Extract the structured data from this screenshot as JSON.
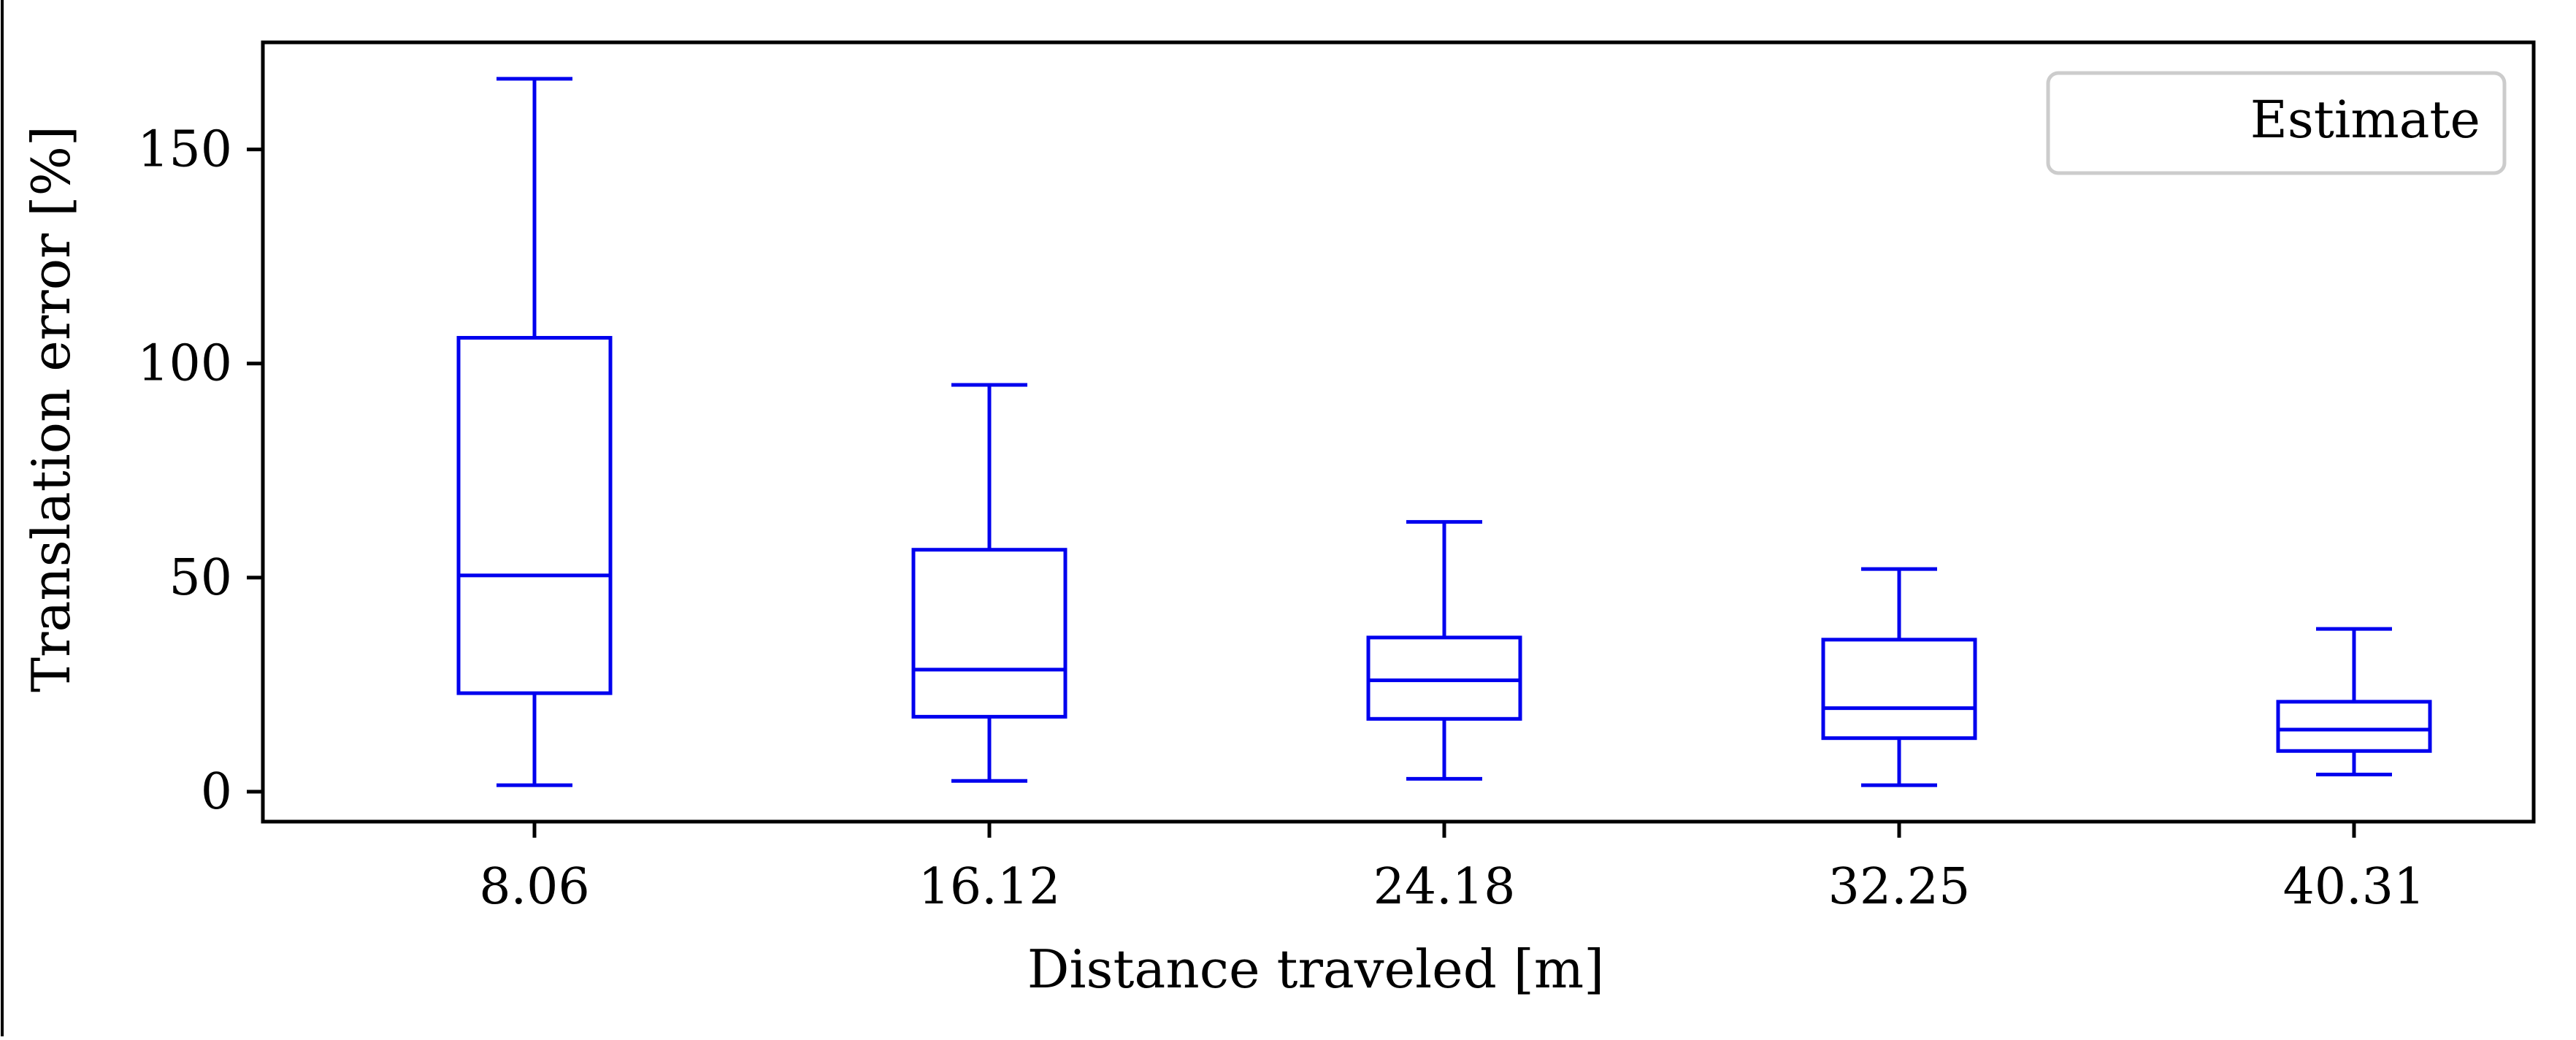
{
  "chart_data": {
    "type": "box",
    "xlabel": "Distance traveled [m]",
    "ylabel": "Translation error [%]",
    "categories": [
      "8.06",
      "16.12",
      "24.18",
      "32.25",
      "40.31"
    ],
    "yticks": [
      0,
      50,
      100,
      150
    ],
    "ylim": [
      -7,
      175
    ],
    "legend": {
      "placement": "top-right",
      "entries": [
        "Estimate"
      ]
    },
    "series": [
      {
        "name": "Estimate",
        "color": "#0000ee",
        "boxes": [
          {
            "whisker_low": 1.5,
            "q1": 23,
            "median": 50.5,
            "q3": 106,
            "whisker_high": 166.5
          },
          {
            "whisker_low": 2.5,
            "q1": 17.5,
            "median": 28.5,
            "q3": 56.5,
            "whisker_high": 95
          },
          {
            "whisker_low": 3,
            "q1": 17,
            "median": 26,
            "q3": 36,
            "whisker_high": 63
          },
          {
            "whisker_low": 1.5,
            "q1": 12.5,
            "median": 19.5,
            "q3": 35.5,
            "whisker_high": 52
          },
          {
            "whisker_low": 4,
            "q1": 9.5,
            "median": 14.5,
            "q3": 21,
            "whisker_high": 38
          }
        ]
      }
    ],
    "grid": false
  }
}
